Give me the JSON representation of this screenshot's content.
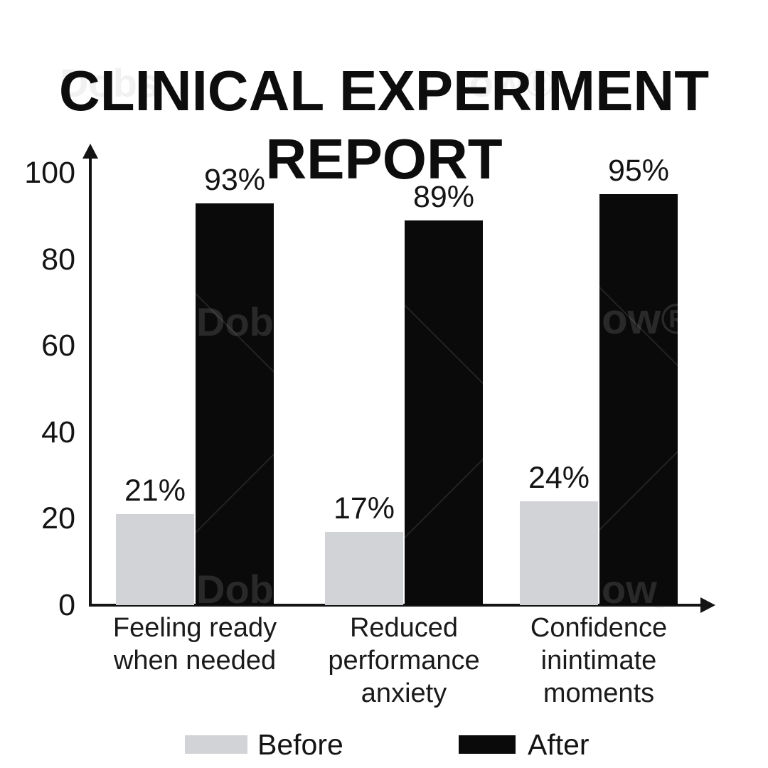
{
  "title": {
    "lines": [
      "CLINICAL EXPERIMENT",
      "REPORT"
    ]
  },
  "chart_data": {
    "type": "bar",
    "title": "CLINICAL EXPERIMENT REPORT",
    "categories": [
      "Feeling ready when needed",
      "Reduced performance anxiety",
      "Confidence inintimate moments"
    ],
    "category_lines": [
      [
        "Feeling ready",
        "when needed"
      ],
      [
        "Reduced",
        "performance",
        "anxiety"
      ],
      [
        "Confidence",
        "inintimate",
        "moments"
      ]
    ],
    "series": [
      {
        "name": "Before",
        "color": "#d2d3d6",
        "values": [
          21,
          17,
          24
        ]
      },
      {
        "name": "After",
        "color": "#0a0a0a",
        "values": [
          93,
          89,
          95
        ]
      }
    ],
    "value_suffix": "%",
    "data_labels": [
      "21%",
      "93%",
      "17%",
      "89%",
      "24%",
      "95%"
    ],
    "yticks": [
      100,
      80,
      60,
      40,
      20,
      0
    ],
    "ylim": [
      0,
      100
    ],
    "grid": false,
    "legend_position": "bottom",
    "axis_arrows": true
  },
  "watermark": {
    "fragments": [
      {
        "text": "Dobs"
      },
      {
        "text": "ow®"
      },
      {
        "text": "Dobs"
      },
      {
        "text": "ow"
      },
      {
        "text": "®"
      },
      {
        "text": "ow®"
      },
      {
        "text": "Dobs"
      }
    ]
  },
  "colors": {
    "background": "#ffffff",
    "before_bar": "#d2d3d6",
    "after_bar": "#0a0a0a",
    "axis": "#141414",
    "text": "#141414"
  }
}
